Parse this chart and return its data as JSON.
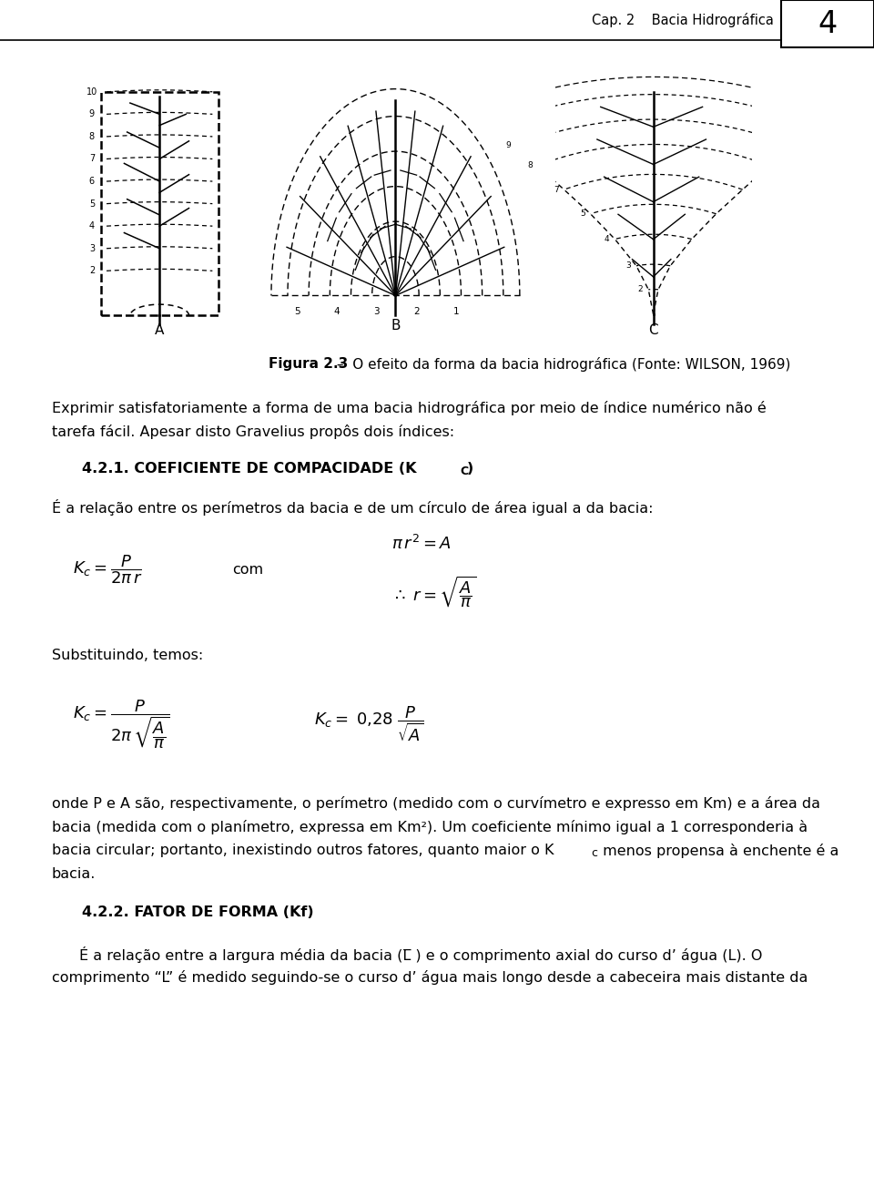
{
  "page_num": "4",
  "header_text": "Cap. 2    Bacia Hidrográfica",
  "fig_caption_bold": "Figura 2.3",
  "fig_caption_rest": " –  O efeito da forma da bacia hidrográfica (Fonte: WILSON, 1969)",
  "para1_line1": "Exprimir satisfatoriamente a forma de uma bacia hidrográfica por meio de índice numérico não é",
  "para1_line2": "tarefa fácil. Apesar disto Gravelius propôs dois índices:",
  "section1": "4.2.1. COEFICIENTE DE COMPACIDADE (K",
  "section1_sub": "C",
  "section1_end": ")",
  "def_text": "É a relação entre os perímetros da bacia e de um círculo de área igual a da bacia:",
  "subst_text": "Substituindo, temos:",
  "para2_line1": "onde P e A são, respectivamente, o perímetro (medido com o curvímetro e expresso em Km) e a área da",
  "para2_line2": "bacia (medida com o planímetro, expressa em Km²). Um coeficiente mínimo igual a 1 corresponderia à",
  "para2_line3a": "bacia circular; portanto, inexistindo outros fatores, quanto maior o K",
  "para2_line3b": "c",
  "para2_line3c": " menos propensa à enchente é a",
  "para2_line4": "bacia.",
  "section2": "4.2.2. FATOR DE FORMA (Kf)",
  "para3_line1": "É a relação entre a largura média da bacia (L̅ ) e o comprimento axial do curso d’ água (L). O",
  "para3_line2": "comprimento “L” é medido seguindo-se o curso d’ água mais longo desde a cabeceira mais distante da",
  "bg_color": "#ffffff",
  "text_color": "#000000"
}
